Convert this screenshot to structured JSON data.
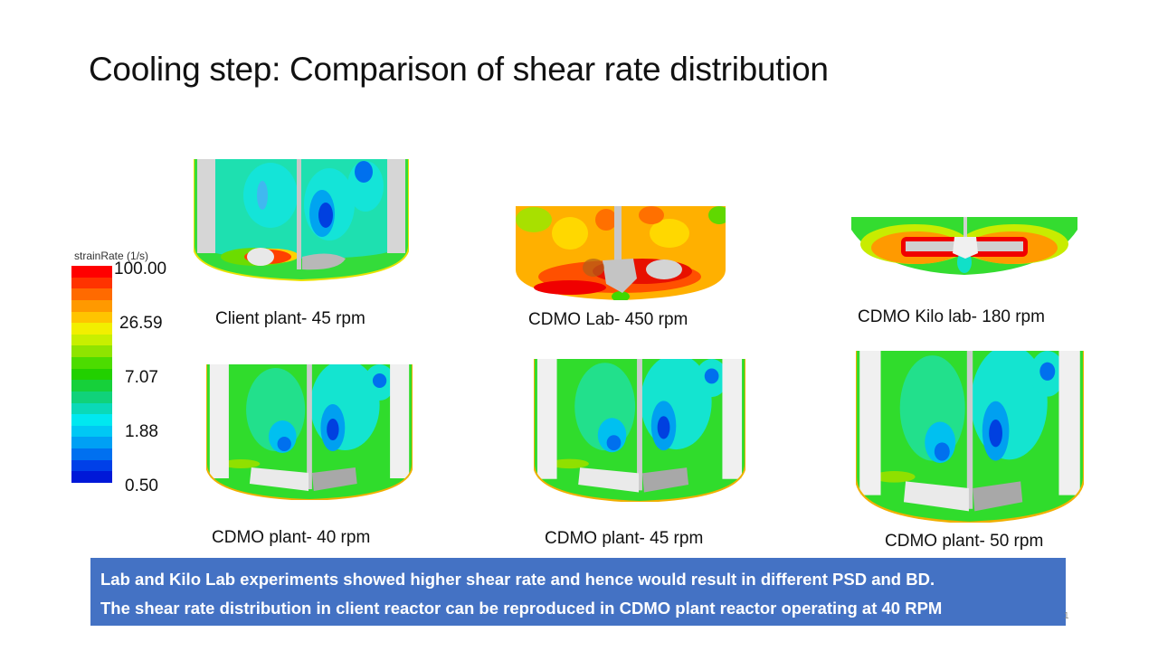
{
  "slide": {
    "title": "Cooling step: Comparison of shear rate distribution",
    "slide_number": "1"
  },
  "legend": {
    "title": "strainRate (1/s)",
    "ticks": [
      "100.00",
      "26.59",
      "7.07",
      "1.88",
      "0.50"
    ],
    "colors": [
      "#ff0000",
      "#ff3300",
      "#ff6a00",
      "#ff9900",
      "#ffc400",
      "#f2ef00",
      "#c8ef00",
      "#8fe400",
      "#4cdc00",
      "#22d000",
      "#16d03a",
      "#10d27a",
      "#0ad9b8",
      "#00e8f0",
      "#00c8f4",
      "#00a0f4",
      "#0070f0",
      "#0040e8",
      "#0018d8"
    ]
  },
  "simulations": [
    {
      "caption": "Client plant- 45 rpm",
      "scheme": "plant_pbt"
    },
    {
      "caption": "CDMO Lab- 450 rpm",
      "scheme": "lab_hot"
    },
    {
      "caption": "CDMO Kilo lab- 180 rpm",
      "scheme": "kilo"
    },
    {
      "caption": "CDMO plant- 40 rpm",
      "scheme": "plant"
    },
    {
      "caption": "CDMO plant- 45 rpm",
      "scheme": "plant"
    },
    {
      "caption": "CDMO plant- 50 rpm",
      "scheme": "plant"
    }
  ],
  "callout": {
    "line1": "Lab and Kilo Lab experiments showed higher shear rate and hence would result in different PSD and BD.",
    "line2": "The shear rate distribution in client reactor can be reproduced in CDMO plant reactor operating at 40 RPM",
    "color": "#4472c4"
  }
}
